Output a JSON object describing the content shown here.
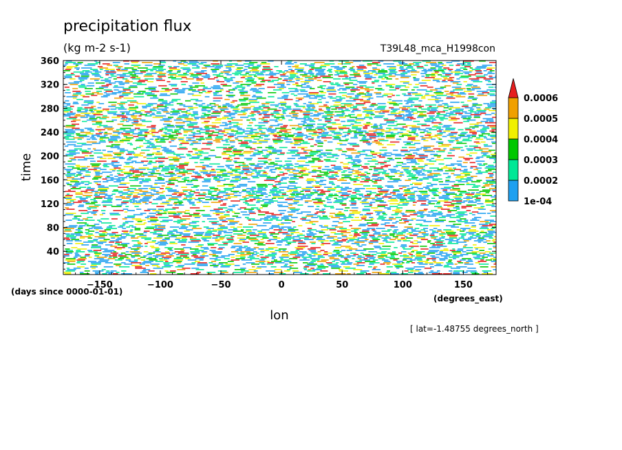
{
  "chart_data": {
    "type": "heatmap",
    "title": "precipitation flux",
    "units": "(kg m-2 s-1)",
    "model_label": "T39L48_mca_H1998con",
    "xlabel": "lon",
    "ylabel": "time",
    "x_units": "(degrees_east)",
    "y_units": "(days since 0000-01-01)",
    "footer": "[ lat=-1.48755 degrees_north ]",
    "xlim": [
      -180,
      177
    ],
    "ylim": [
      1,
      360
    ],
    "x_ticks": [
      -150,
      -100,
      -50,
      0,
      50,
      100,
      150
    ],
    "y_ticks": [
      40,
      80,
      120,
      160,
      200,
      240,
      280,
      320,
      360
    ],
    "grid": false,
    "legend_placement": "right",
    "colorbar": {
      "labels": [
        "1e-04",
        "0.0002",
        "0.0003",
        "0.0004",
        "0.0005",
        "0.0006"
      ],
      "colors": [
        "#1ea0f0",
        "#00e896",
        "#00c800",
        "#f0f000",
        "#f0a000",
        "#e61e1e"
      ]
    }
  }
}
